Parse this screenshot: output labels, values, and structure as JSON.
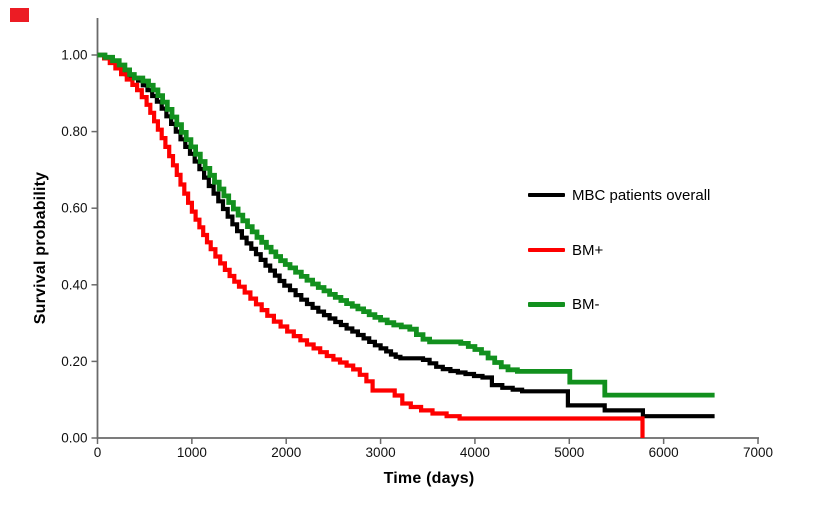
{
  "figure": {
    "corner_marker_color": "#ec1c24",
    "background": "#ffffff"
  },
  "chart_data": {
    "type": "line",
    "subtype": "kaplan-meier-step-curves",
    "title": "",
    "xlabel": "Time (days)",
    "ylabel": "Survival probability",
    "xlim": [
      0,
      7000
    ],
    "ylim": [
      0.0,
      1.0
    ],
    "grid": false,
    "legend_position": "right-middle",
    "axis_color": "#6a6a6a",
    "tick_label_color": "#111111",
    "x_ticks": {
      "values": [
        0,
        1000,
        2000,
        3000,
        4000,
        5000,
        6000,
        7000
      ],
      "labels": [
        "0",
        "1000",
        "2000",
        "3000",
        "4000",
        "5000",
        "6000",
        "7000"
      ]
    },
    "y_ticks": {
      "values": [
        1.0,
        0.8,
        0.6,
        0.4,
        0.2,
        0.0
      ],
      "labels": [
        "1.00",
        "0.80",
        "0.60",
        "0.40",
        "0.20",
        "0.00"
      ]
    },
    "series": [
      {
        "name": "MBC patients overall",
        "color": "#000000",
        "stroke_width": 4.2,
        "end_day": 6540,
        "points": [
          [
            0,
            1.0
          ],
          [
            70,
            0.993
          ],
          [
            140,
            0.984
          ],
          [
            200,
            0.973
          ],
          [
            250,
            0.962
          ],
          [
            300,
            0.95
          ],
          [
            340,
            0.94
          ],
          [
            430,
            0.933
          ],
          [
            480,
            0.921
          ],
          [
            530,
            0.908
          ],
          [
            580,
            0.893
          ],
          [
            630,
            0.878
          ],
          [
            680,
            0.86
          ],
          [
            730,
            0.84
          ],
          [
            780,
            0.82
          ],
          [
            830,
            0.8
          ],
          [
            880,
            0.78
          ],
          [
            930,
            0.76
          ],
          [
            980,
            0.742
          ],
          [
            1030,
            0.722
          ],
          [
            1080,
            0.702
          ],
          [
            1130,
            0.68
          ],
          [
            1180,
            0.658
          ],
          [
            1230,
            0.638
          ],
          [
            1280,
            0.618
          ],
          [
            1330,
            0.598
          ],
          [
            1380,
            0.578
          ],
          [
            1430,
            0.558
          ],
          [
            1480,
            0.54
          ],
          [
            1530,
            0.523
          ],
          [
            1580,
            0.508
          ],
          [
            1630,
            0.494
          ],
          [
            1680,
            0.48
          ],
          [
            1730,
            0.465
          ],
          [
            1780,
            0.45
          ],
          [
            1830,
            0.437
          ],
          [
            1880,
            0.424
          ],
          [
            1930,
            0.41
          ],
          [
            1980,
            0.398
          ],
          [
            2040,
            0.386
          ],
          [
            2100,
            0.373
          ],
          [
            2160,
            0.361
          ],
          [
            2220,
            0.35
          ],
          [
            2280,
            0.34
          ],
          [
            2340,
            0.33
          ],
          [
            2400,
            0.321
          ],
          [
            2460,
            0.312
          ],
          [
            2520,
            0.303
          ],
          [
            2580,
            0.295
          ],
          [
            2640,
            0.286
          ],
          [
            2700,
            0.278
          ],
          [
            2760,
            0.269
          ],
          [
            2820,
            0.26
          ],
          [
            2880,
            0.251
          ],
          [
            2940,
            0.242
          ],
          [
            3000,
            0.234
          ],
          [
            3060,
            0.226
          ],
          [
            3110,
            0.218
          ],
          [
            3160,
            0.212
          ],
          [
            3210,
            0.208
          ],
          [
            3450,
            0.204
          ],
          [
            3520,
            0.195
          ],
          [
            3590,
            0.186
          ],
          [
            3660,
            0.18
          ],
          [
            3740,
            0.175
          ],
          [
            3820,
            0.171
          ],
          [
            3900,
            0.167
          ],
          [
            3990,
            0.162
          ],
          [
            4080,
            0.158
          ],
          [
            4180,
            0.138
          ],
          [
            4290,
            0.131
          ],
          [
            4400,
            0.126
          ],
          [
            4500,
            0.122
          ],
          [
            4985,
            0.085
          ],
          [
            5375,
            0.072
          ],
          [
            5780,
            0.057
          ]
        ]
      },
      {
        "name": "BM+",
        "color": "#fe0000",
        "stroke_width": 4.2,
        "end_day": 5776,
        "points": [
          [
            0,
            1.0
          ],
          [
            70,
            0.991
          ],
          [
            130,
            0.979
          ],
          [
            190,
            0.965
          ],
          [
            250,
            0.95
          ],
          [
            310,
            0.936
          ],
          [
            370,
            0.922
          ],
          [
            420,
            0.908
          ],
          [
            470,
            0.89
          ],
          [
            520,
            0.87
          ],
          [
            560,
            0.849
          ],
          [
            600,
            0.827
          ],
          [
            640,
            0.805
          ],
          [
            680,
            0.783
          ],
          [
            720,
            0.76
          ],
          [
            760,
            0.736
          ],
          [
            800,
            0.712
          ],
          [
            840,
            0.687
          ],
          [
            880,
            0.662
          ],
          [
            920,
            0.638
          ],
          [
            960,
            0.614
          ],
          [
            1000,
            0.591
          ],
          [
            1040,
            0.57
          ],
          [
            1080,
            0.55
          ],
          [
            1120,
            0.53
          ],
          [
            1160,
            0.511
          ],
          [
            1200,
            0.493
          ],
          [
            1250,
            0.474
          ],
          [
            1300,
            0.456
          ],
          [
            1350,
            0.439
          ],
          [
            1400,
            0.423
          ],
          [
            1450,
            0.408
          ],
          [
            1500,
            0.395
          ],
          [
            1560,
            0.38
          ],
          [
            1620,
            0.364
          ],
          [
            1680,
            0.349
          ],
          [
            1740,
            0.334
          ],
          [
            1800,
            0.319
          ],
          [
            1870,
            0.304
          ],
          [
            1940,
            0.291
          ],
          [
            2010,
            0.278
          ],
          [
            2080,
            0.266
          ],
          [
            2150,
            0.255
          ],
          [
            2220,
            0.244
          ],
          [
            2290,
            0.234
          ],
          [
            2360,
            0.224
          ],
          [
            2430,
            0.214
          ],
          [
            2500,
            0.205
          ],
          [
            2570,
            0.197
          ],
          [
            2640,
            0.189
          ],
          [
            2710,
            0.179
          ],
          [
            2780,
            0.165
          ],
          [
            2850,
            0.148
          ],
          [
            2915,
            0.124
          ],
          [
            3150,
            0.111
          ],
          [
            3230,
            0.09
          ],
          [
            3320,
            0.081
          ],
          [
            3430,
            0.072
          ],
          [
            3550,
            0.064
          ],
          [
            3700,
            0.057
          ],
          [
            3838,
            0.051
          ],
          [
            5776,
            0.0
          ]
        ]
      },
      {
        "name": "BM-",
        "color": "#12901e",
        "stroke_width": 4.8,
        "end_day": 6540,
        "points": [
          [
            0,
            1.0
          ],
          [
            80,
            0.994
          ],
          [
            160,
            0.985
          ],
          [
            230,
            0.974
          ],
          [
            290,
            0.961
          ],
          [
            340,
            0.949
          ],
          [
            390,
            0.94
          ],
          [
            480,
            0.932
          ],
          [
            540,
            0.921
          ],
          [
            590,
            0.909
          ],
          [
            640,
            0.894
          ],
          [
            690,
            0.877
          ],
          [
            740,
            0.858
          ],
          [
            790,
            0.838
          ],
          [
            840,
            0.818
          ],
          [
            890,
            0.798
          ],
          [
            940,
            0.779
          ],
          [
            990,
            0.76
          ],
          [
            1040,
            0.741
          ],
          [
            1090,
            0.722
          ],
          [
            1140,
            0.704
          ],
          [
            1190,
            0.686
          ],
          [
            1240,
            0.668
          ],
          [
            1290,
            0.65
          ],
          [
            1340,
            0.632
          ],
          [
            1390,
            0.615
          ],
          [
            1440,
            0.598
          ],
          [
            1490,
            0.582
          ],
          [
            1540,
            0.567
          ],
          [
            1590,
            0.552
          ],
          [
            1640,
            0.538
          ],
          [
            1690,
            0.524
          ],
          [
            1740,
            0.511
          ],
          [
            1790,
            0.498
          ],
          [
            1840,
            0.486
          ],
          [
            1890,
            0.474
          ],
          [
            1940,
            0.463
          ],
          [
            1990,
            0.453
          ],
          [
            2040,
            0.444
          ],
          [
            2100,
            0.433
          ],
          [
            2160,
            0.422
          ],
          [
            2220,
            0.412
          ],
          [
            2280,
            0.402
          ],
          [
            2340,
            0.393
          ],
          [
            2400,
            0.384
          ],
          [
            2460,
            0.375
          ],
          [
            2520,
            0.367
          ],
          [
            2580,
            0.359
          ],
          [
            2640,
            0.351
          ],
          [
            2700,
            0.344
          ],
          [
            2760,
            0.337
          ],
          [
            2820,
            0.33
          ],
          [
            2880,
            0.322
          ],
          [
            2940,
            0.315
          ],
          [
            3000,
            0.308
          ],
          [
            3070,
            0.301
          ],
          [
            3140,
            0.295
          ],
          [
            3220,
            0.29
          ],
          [
            3310,
            0.284
          ],
          [
            3380,
            0.27
          ],
          [
            3450,
            0.258
          ],
          [
            3520,
            0.251
          ],
          [
            3850,
            0.247
          ],
          [
            3930,
            0.239
          ],
          [
            4000,
            0.231
          ],
          [
            4070,
            0.222
          ],
          [
            4140,
            0.209
          ],
          [
            4210,
            0.197
          ],
          [
            4280,
            0.186
          ],
          [
            4350,
            0.178
          ],
          [
            4450,
            0.174
          ],
          [
            5005,
            0.146
          ],
          [
            5376,
            0.112
          ]
        ]
      }
    ],
    "legend": {
      "items": [
        {
          "label": "MBC patients overall",
          "color": "#000000"
        },
        {
          "label": "BM+",
          "color": "#fe0000"
        },
        {
          "label": "BM-",
          "color": "#12901e"
        }
      ]
    }
  }
}
